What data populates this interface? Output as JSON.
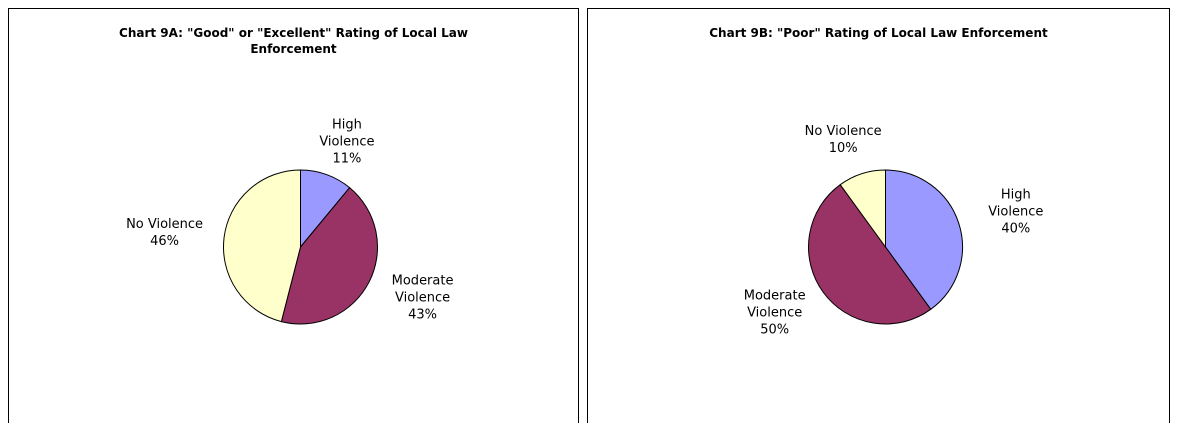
{
  "chart_data": [
    {
      "type": "pie",
      "title": "Chart 9A: \"Good\" or \"Excellent\" Rating of Local Law Enforcement",
      "categories": [
        "High Violence",
        "Moderate Violence",
        "No Violence"
      ],
      "values": [
        11,
        43,
        46
      ],
      "value_labels": [
        "11%",
        "43%",
        "46%"
      ],
      "colors": [
        "#9999ff",
        "#993366",
        "#ffffcc"
      ]
    },
    {
      "type": "pie",
      "title": "Chart 9B: \"Poor\" Rating of Local Law Enforcement",
      "categories": [
        "High Violence",
        "Moderate Violence",
        "No Violence"
      ],
      "values": [
        40,
        50,
        10
      ],
      "value_labels": [
        "40%",
        "50%",
        "10%"
      ],
      "colors": [
        "#9999ff",
        "#993366",
        "#ffffcc"
      ]
    }
  ]
}
